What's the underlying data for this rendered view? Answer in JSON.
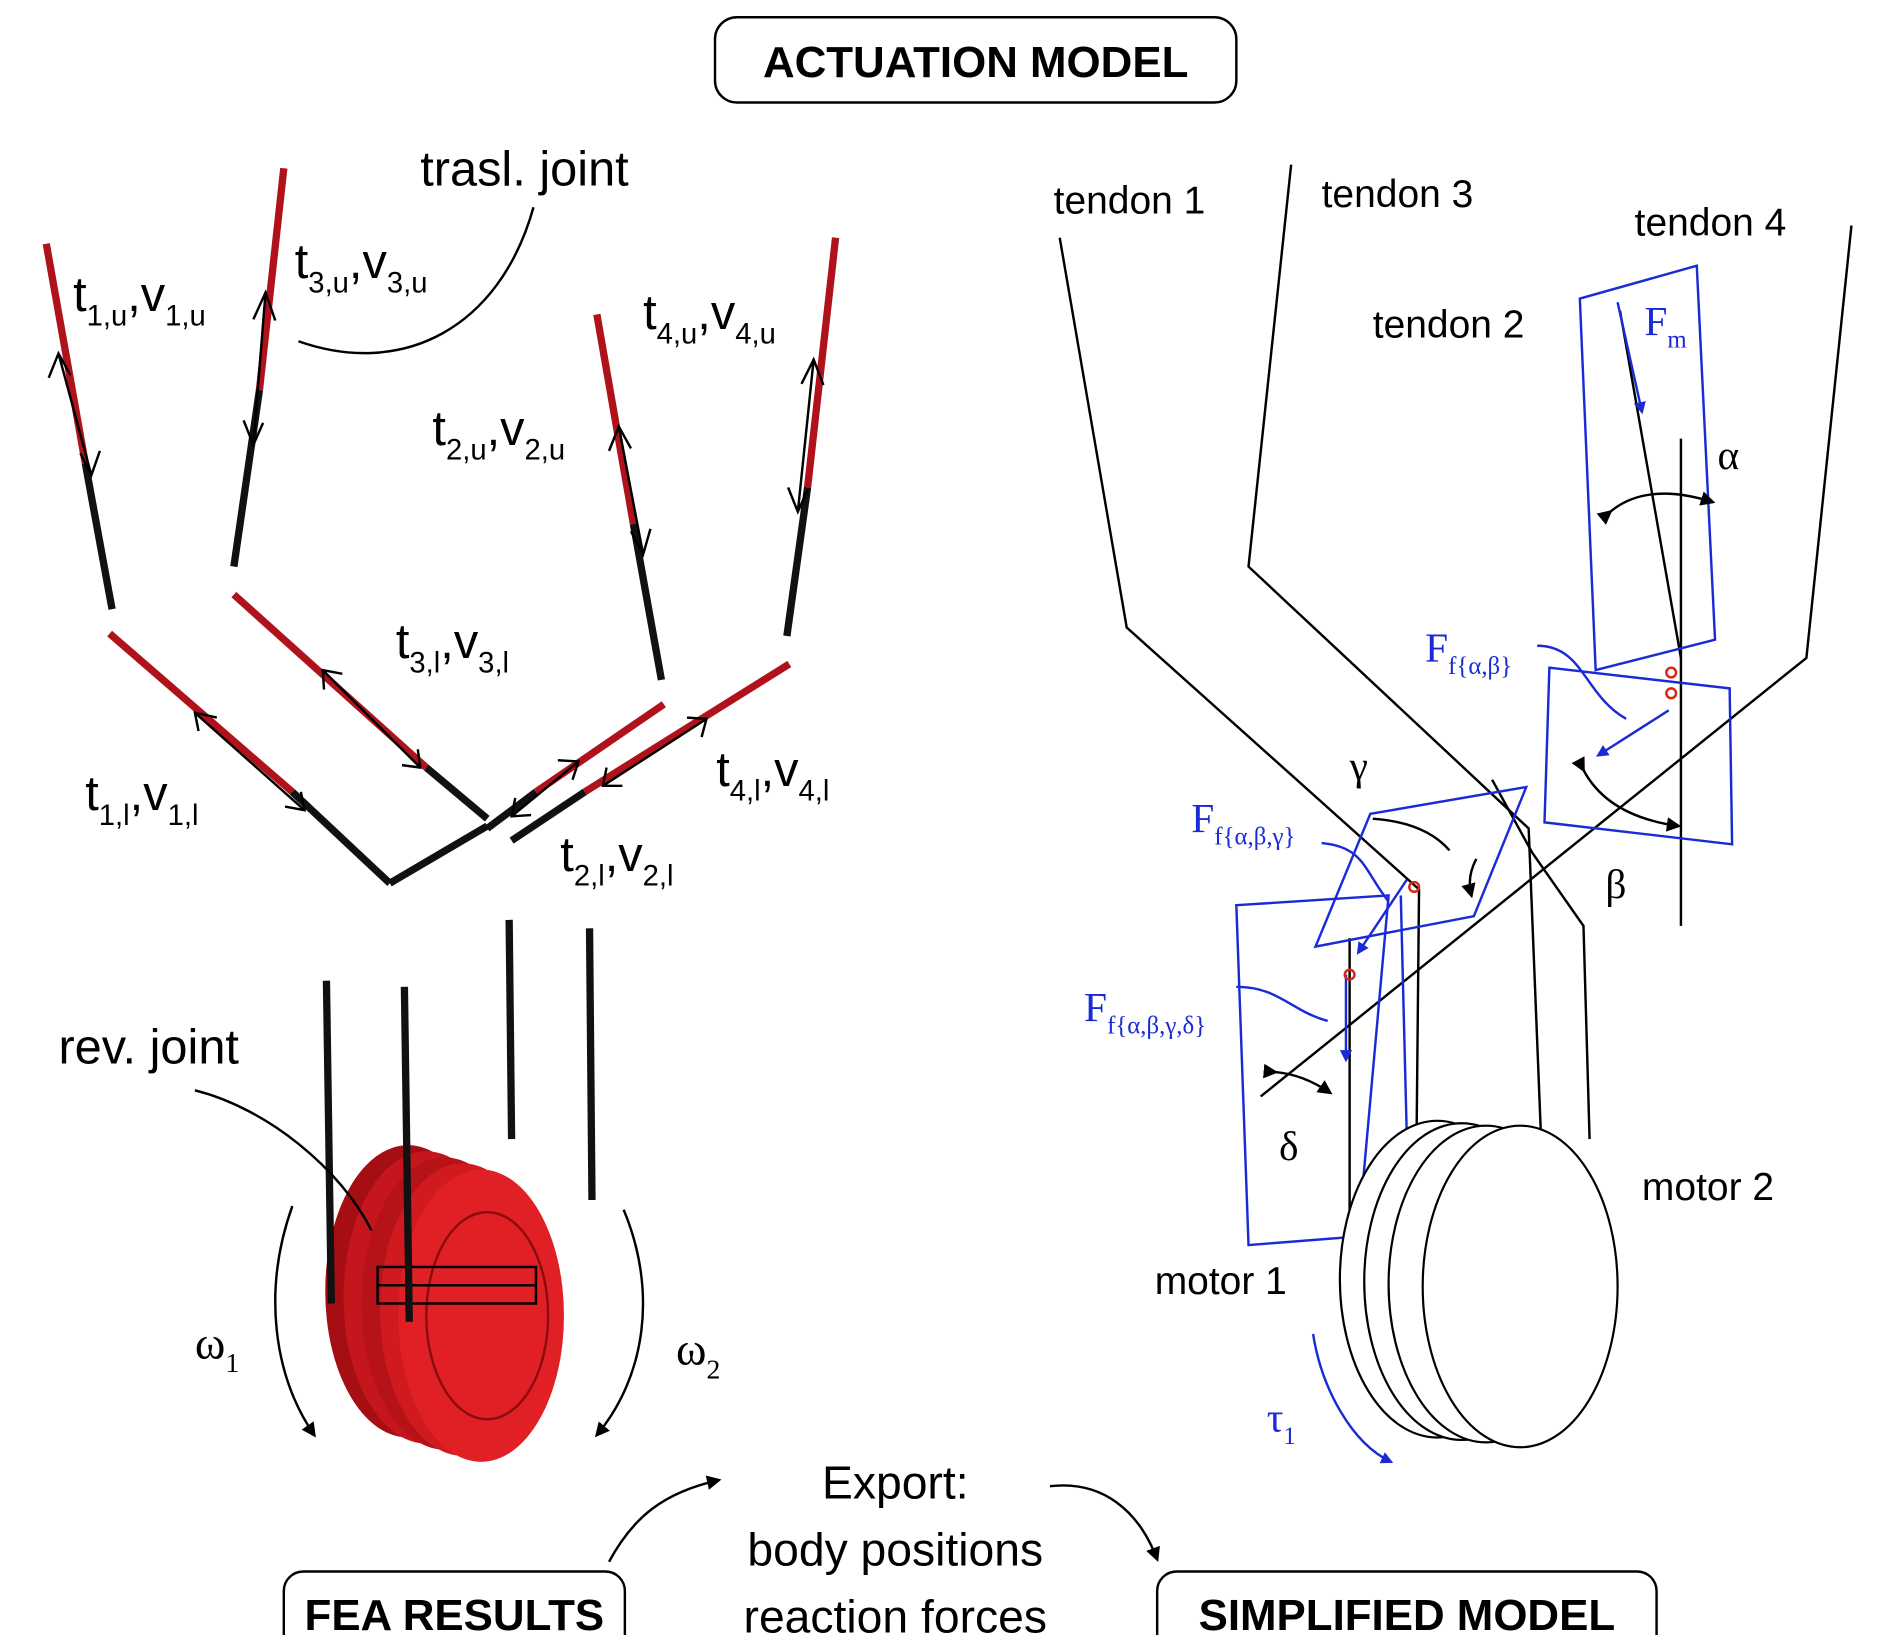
{
  "title": "ACTUATION MODEL",
  "fea_model": {
    "tendon_labels": [
      [
        "t",
        "1,u",
        ",v",
        "1,u"
      ],
      [
        "t",
        "3,u",
        ",v",
        "3,u"
      ],
      [
        "t",
        "4,u",
        ",v",
        "4,u"
      ],
      [
        "t",
        "2,u",
        ",v",
        "2,u"
      ],
      [
        "t",
        "3,l",
        ",v",
        "3,l"
      ],
      [
        "t",
        "1,l",
        ",v",
        "1,l"
      ],
      [
        "t",
        "4,l",
        ",v",
        "4,l"
      ],
      [
        "t",
        "2,l",
        ",v",
        "2,l"
      ]
    ],
    "notes": [
      "trasl. joint",
      "rev. joint"
    ],
    "speeds": [
      [
        "ω",
        "1"
      ],
      [
        "ω",
        "2"
      ]
    ]
  },
  "simplified": {
    "tendons": [
      "tendon 1",
      "tendon 3",
      "tendon 4",
      "tendon 2"
    ],
    "motors": [
      "motor 1",
      "motor 2"
    ],
    "forces": [
      [
        "F",
        "m"
      ],
      [
        "F",
        "f{α,β}"
      ],
      [
        "F",
        "f{α,β,γ}"
      ],
      [
        "F",
        "f{α,β,γ,δ}"
      ]
    ],
    "angles": [
      "α",
      "β",
      "γ",
      "δ"
    ],
    "torque": [
      "τ",
      "1"
    ]
  },
  "flow": {
    "fea_results": "FEA RESULTS",
    "export": [
      "Export:",
      "body positions",
      "reaction forces"
    ],
    "simplified_model": "SIMPLIFIED MODEL"
  }
}
